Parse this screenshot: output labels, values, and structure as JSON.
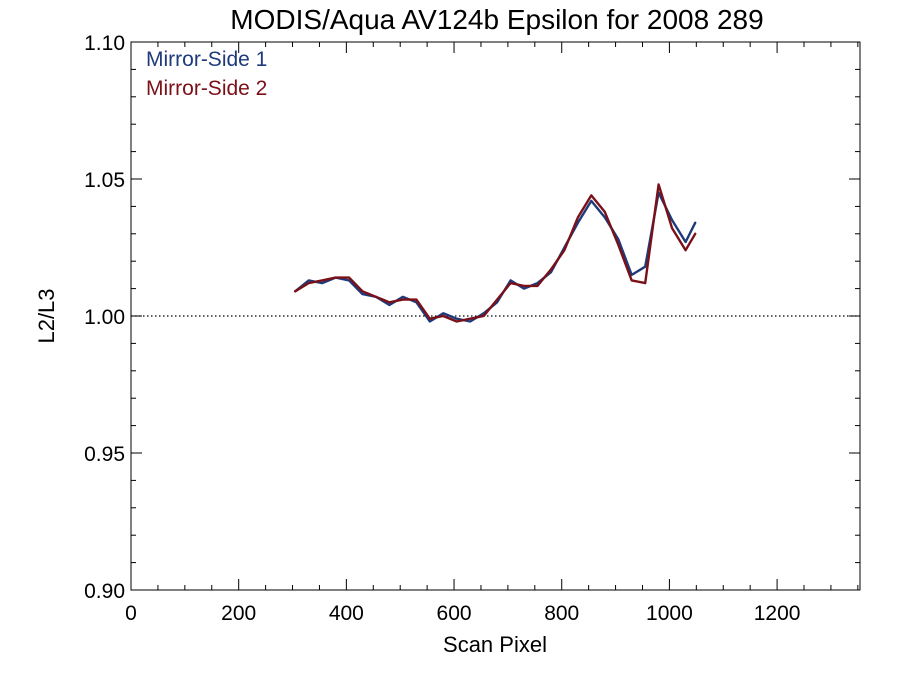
{
  "chart_data": {
    "type": "line",
    "title": "MODIS/Aqua AV124b Epsilon for 2008 289",
    "xlabel": "Scan Pixel",
    "ylabel": "L2/L3",
    "xlim": [
      0,
      1354
    ],
    "ylim": [
      0.9,
      1.1
    ],
    "x_ticks": [
      "0",
      "200",
      "400",
      "600",
      "800",
      "1000",
      "1200"
    ],
    "x_tick_values": [
      0,
      200,
      400,
      600,
      800,
      1000,
      1200
    ],
    "y_ticks": [
      "0.90",
      "0.95",
      "1.00",
      "1.05",
      "1.10"
    ],
    "y_tick_values": [
      0.9,
      0.95,
      1.0,
      1.05,
      1.1
    ],
    "reference_line": {
      "y": 1.0,
      "style": "dotted"
    },
    "legend_position": "top-left",
    "colors": {
      "mirror_side_1": "#1f3a7a",
      "mirror_side_2": "#7a1018"
    },
    "x": [
      305,
      330,
      355,
      380,
      405,
      430,
      455,
      480,
      505,
      530,
      555,
      580,
      605,
      630,
      655,
      680,
      705,
      730,
      755,
      780,
      805,
      830,
      855,
      880,
      905,
      930,
      955,
      980,
      1005,
      1030,
      1048
    ],
    "series": [
      {
        "name": "Mirror-Side 1",
        "color": "#1f3a7a",
        "values": [
          1.009,
          1.013,
          1.012,
          1.014,
          1.013,
          1.008,
          1.007,
          1.004,
          1.007,
          1.005,
          0.998,
          1.001,
          0.999,
          0.998,
          1.001,
          1.005,
          1.013,
          1.01,
          1.012,
          1.016,
          1.025,
          1.034,
          1.042,
          1.036,
          1.028,
          1.015,
          1.018,
          1.045,
          1.035,
          1.027,
          1.034
        ]
      },
      {
        "name": "Mirror-Side 2",
        "color": "#7a1018",
        "values": [
          1.009,
          1.012,
          1.013,
          1.014,
          1.014,
          1.009,
          1.007,
          1.005,
          1.006,
          1.006,
          0.999,
          1.0,
          0.998,
          0.999,
          1.0,
          1.006,
          1.012,
          1.011,
          1.011,
          1.017,
          1.024,
          1.036,
          1.044,
          1.038,
          1.026,
          1.013,
          1.012,
          1.048,
          1.032,
          1.024,
          1.03
        ]
      }
    ]
  }
}
